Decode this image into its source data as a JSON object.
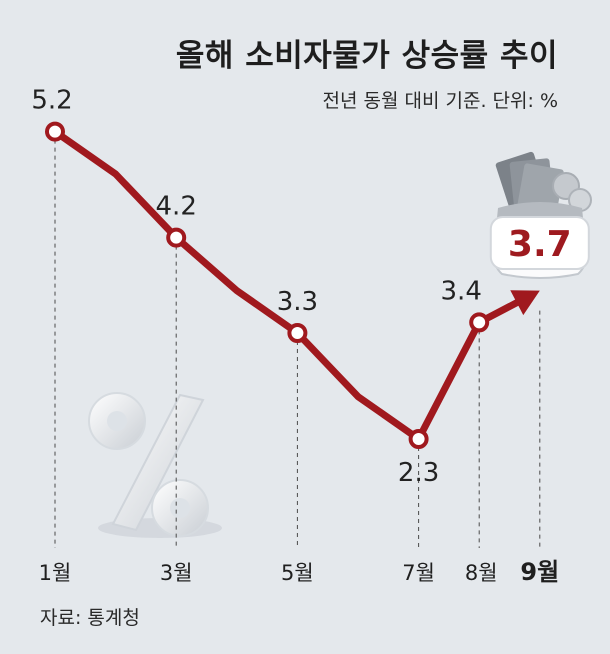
{
  "header": {
    "title": "올해 소비자물가 상승률 추이",
    "subtitle": "전년 동월 대비 기준. 단위: %"
  },
  "footer": {
    "source": "자료: 통계청"
  },
  "colors": {
    "line": "#a0191e",
    "highlight": "#9e1a1f",
    "text": "#222222",
    "background": "#e4e8ec"
  },
  "chart_data": {
    "type": "line",
    "title": "올해 소비자물가 상승률 추이",
    "subtitle": "전년 동월 대비 기준. 단위: %",
    "x": [
      1,
      2,
      3,
      4,
      5,
      6,
      7,
      8,
      9
    ],
    "x_tick_labels": [
      "1월",
      "3월",
      "5월",
      "7월",
      "8월",
      "9월"
    ],
    "x_tick_positions": [
      1,
      3,
      5,
      7,
      8,
      9
    ],
    "series": [
      {
        "values": [
          5.2,
          4.8,
          4.2,
          3.7,
          3.3,
          2.7,
          2.3,
          3.4,
          3.7
        ]
      }
    ],
    "data_labels": [
      {
        "x": 1,
        "text": "5.2"
      },
      {
        "x": 3,
        "text": "4.2"
      },
      {
        "x": 5,
        "text": "3.3"
      },
      {
        "x": 7,
        "text": "2.3"
      },
      {
        "x": 8,
        "text": "3.4"
      },
      {
        "x": 9,
        "text": "3.7",
        "highlight": true
      }
    ],
    "grid": false,
    "decorations": [
      "percent-sign-icon",
      "money-bag-icon"
    ]
  }
}
